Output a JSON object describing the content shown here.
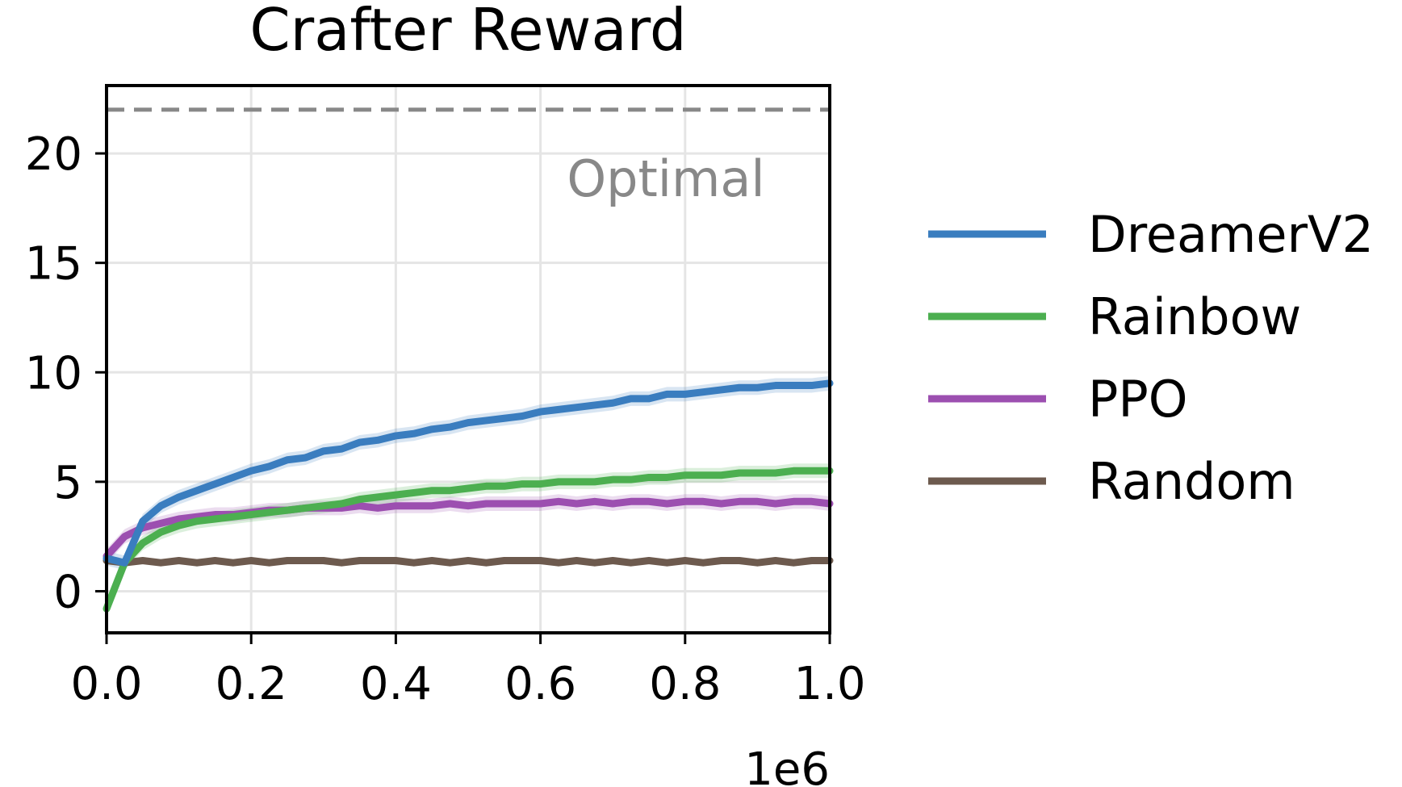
{
  "chart_data": {
    "type": "line",
    "title": "Crafter Reward",
    "xlabel": "",
    "ylabel": "",
    "x_offset_label": "1e6",
    "xlim": [
      0.0,
      1.0
    ],
    "ylim": [
      -1.9,
      23.1
    ],
    "x_ticks": [
      "0.0",
      "0.2",
      "0.4",
      "0.6",
      "0.8",
      "1.0"
    ],
    "y_ticks": [
      "0",
      "5",
      "10",
      "15",
      "20"
    ],
    "grid": true,
    "legend_position": "right, outside",
    "reference_line": {
      "label": "Optimal",
      "value": 22,
      "color": "#888888",
      "style": "dashed"
    },
    "x": [
      0.0,
      0.025,
      0.05,
      0.075,
      0.1,
      0.125,
      0.15,
      0.175,
      0.2,
      0.225,
      0.25,
      0.275,
      0.3,
      0.325,
      0.35,
      0.375,
      0.4,
      0.425,
      0.45,
      0.475,
      0.5,
      0.525,
      0.55,
      0.575,
      0.6,
      0.625,
      0.65,
      0.675,
      0.7,
      0.725,
      0.75,
      0.775,
      0.8,
      0.825,
      0.85,
      0.875,
      0.9,
      0.925,
      0.95,
      0.975,
      1.0
    ],
    "series": [
      {
        "name": "DreamerV2",
        "color": "#3a7dbf",
        "band": true,
        "values": [
          1.5,
          1.3,
          3.2,
          3.9,
          4.3,
          4.6,
          4.9,
          5.2,
          5.5,
          5.7,
          6.0,
          6.1,
          6.4,
          6.5,
          6.8,
          6.9,
          7.1,
          7.2,
          7.4,
          7.5,
          7.7,
          7.8,
          7.9,
          8.0,
          8.2,
          8.3,
          8.4,
          8.5,
          8.6,
          8.8,
          8.8,
          9.0,
          9.0,
          9.1,
          9.2,
          9.3,
          9.3,
          9.4,
          9.4,
          9.4,
          9.5
        ]
      },
      {
        "name": "Rainbow",
        "color": "#4caf50",
        "band": true,
        "values": [
          -0.8,
          1.3,
          2.2,
          2.7,
          3.0,
          3.2,
          3.3,
          3.4,
          3.5,
          3.6,
          3.7,
          3.8,
          3.9,
          4.0,
          4.2,
          4.3,
          4.4,
          4.5,
          4.6,
          4.6,
          4.7,
          4.8,
          4.8,
          4.9,
          4.9,
          5.0,
          5.0,
          5.0,
          5.1,
          5.1,
          5.2,
          5.2,
          5.3,
          5.3,
          5.3,
          5.4,
          5.4,
          5.4,
          5.5,
          5.5,
          5.5
        ]
      },
      {
        "name": "PPO",
        "color": "#9c4fb0",
        "band": true,
        "values": [
          1.6,
          2.5,
          2.9,
          3.1,
          3.3,
          3.4,
          3.5,
          3.5,
          3.6,
          3.7,
          3.7,
          3.8,
          3.8,
          3.8,
          3.9,
          3.8,
          3.9,
          3.9,
          3.9,
          4.0,
          3.9,
          4.0,
          4.0,
          4.0,
          4.0,
          4.1,
          4.0,
          4.1,
          4.0,
          4.1,
          4.1,
          4.0,
          4.1,
          4.1,
          4.0,
          4.1,
          4.1,
          4.0,
          4.1,
          4.1,
          4.0
        ]
      },
      {
        "name": "Random",
        "color": "#6d5a4e",
        "band": false,
        "values": [
          1.4,
          1.3,
          1.4,
          1.3,
          1.4,
          1.3,
          1.4,
          1.3,
          1.4,
          1.3,
          1.4,
          1.4,
          1.4,
          1.3,
          1.4,
          1.4,
          1.4,
          1.3,
          1.4,
          1.3,
          1.4,
          1.3,
          1.4,
          1.4,
          1.4,
          1.3,
          1.4,
          1.3,
          1.4,
          1.3,
          1.4,
          1.3,
          1.4,
          1.3,
          1.4,
          1.4,
          1.3,
          1.4,
          1.3,
          1.4,
          1.4
        ]
      }
    ]
  }
}
